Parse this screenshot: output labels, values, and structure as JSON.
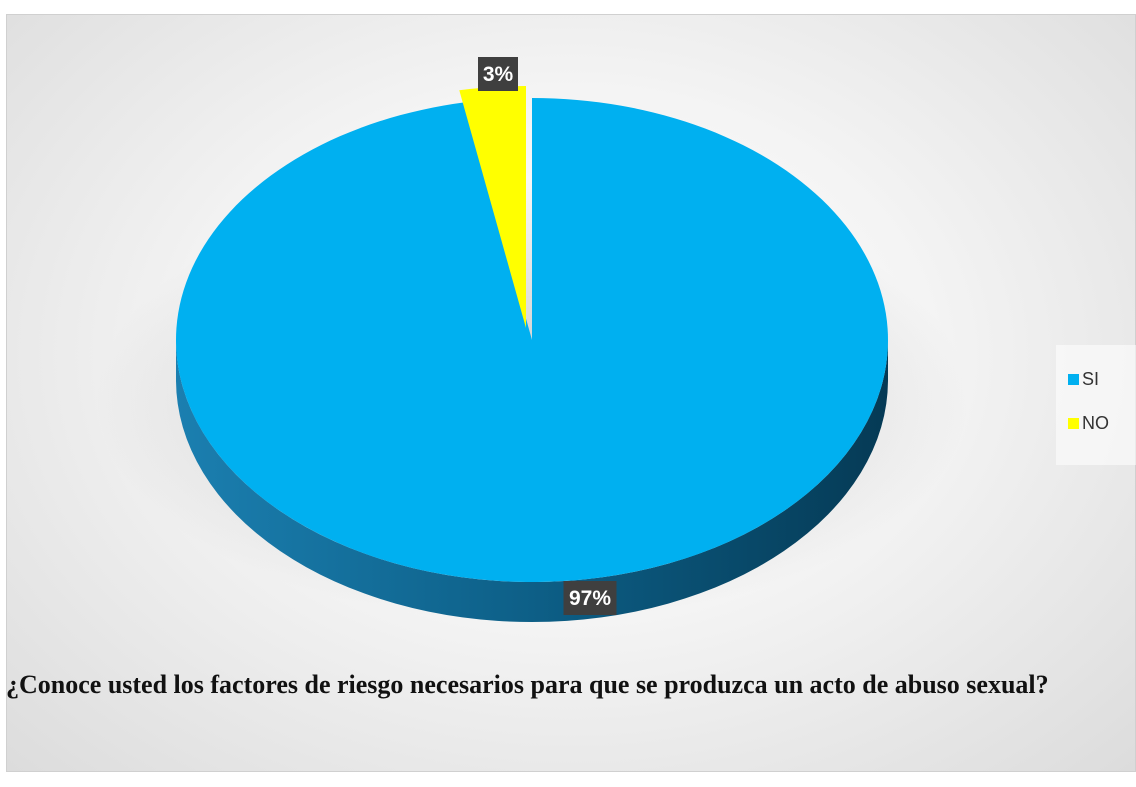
{
  "chart_data": {
    "type": "pie",
    "title": "",
    "categories": [
      "SI",
      "NO"
    ],
    "values": [
      97,
      3
    ],
    "data_labels": [
      "97%",
      "3%"
    ],
    "colors": [
      "#00B0F0",
      "#FFFF00"
    ],
    "legend_position": "right",
    "style": "3d-exploded"
  },
  "legend": {
    "items": [
      {
        "label": "SI",
        "color": "#00B0F0"
      },
      {
        "label": "NO",
        "color": "#FFFF00"
      }
    ]
  },
  "caption": "¿Conoce usted los factores de riesgo necesarios para que se produzca un acto de abuso sexual?"
}
